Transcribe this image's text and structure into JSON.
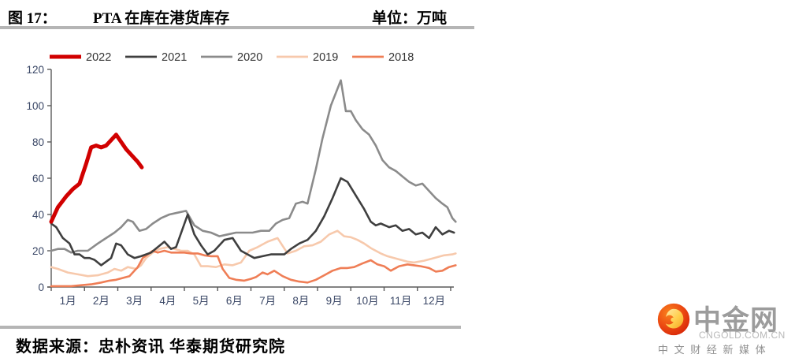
{
  "header": {
    "figure_label": "图 17：",
    "title": "PTA 在库在港货库存",
    "unit_label": "单位：万吨"
  },
  "footer": {
    "source": "数据来源：忠朴资讯 华泰期货研究院"
  },
  "logo": {
    "wordmark": "中金网",
    "domain": "CNGOLD.COM.CN",
    "tagline": "中 文 财 经 新 媒 体"
  },
  "colors": {
    "divider": "#b5b5b5",
    "axis_line": "#5a5a5a",
    "axis_text": "#3a4766",
    "legend_text": "#333333"
  },
  "chart_data": {
    "type": "line",
    "title": "PTA 在库在港货库存",
    "unit": "万吨",
    "x_unit": "month, 1 = start of January, 13 = end of December",
    "x_tick_labels": [
      "1月",
      "2月",
      "3月",
      "4月",
      "5月",
      "6月",
      "7月",
      "8月",
      "9月",
      "10月",
      "11月",
      "12月"
    ],
    "ylim": [
      0,
      120
    ],
    "y_ticks": [
      0,
      20,
      40,
      60,
      80,
      100,
      120
    ],
    "grid": false,
    "legend_position": "top",
    "series": [
      {
        "name": "2022",
        "color": "#d10000",
        "width": 5,
        "points": [
          [
            1.0,
            36
          ],
          [
            1.2,
            44
          ],
          [
            1.45,
            50
          ],
          [
            1.65,
            54
          ],
          [
            1.85,
            57
          ],
          [
            2.05,
            68
          ],
          [
            2.2,
            77
          ],
          [
            2.35,
            78
          ],
          [
            2.5,
            77
          ],
          [
            2.65,
            78
          ],
          [
            2.8,
            81
          ],
          [
            2.95,
            84
          ],
          [
            3.1,
            80
          ],
          [
            3.25,
            76
          ],
          [
            3.45,
            72
          ],
          [
            3.6,
            69
          ],
          [
            3.72,
            66
          ]
        ]
      },
      {
        "name": "2021",
        "color": "#3f3f3f",
        "width": 2.6,
        "points": [
          [
            1.0,
            35
          ],
          [
            1.15,
            33
          ],
          [
            1.35,
            27
          ],
          [
            1.55,
            24
          ],
          [
            1.7,
            18
          ],
          [
            1.85,
            18
          ],
          [
            2.0,
            16
          ],
          [
            2.15,
            16
          ],
          [
            2.3,
            15
          ],
          [
            2.5,
            12
          ],
          [
            2.65,
            14
          ],
          [
            2.8,
            16
          ],
          [
            2.95,
            24
          ],
          [
            3.1,
            23
          ],
          [
            3.3,
            18
          ],
          [
            3.5,
            16
          ],
          [
            3.7,
            17
          ],
          [
            3.85,
            18
          ],
          [
            4.0,
            19
          ],
          [
            4.2,
            22
          ],
          [
            4.4,
            25
          ],
          [
            4.6,
            21
          ],
          [
            4.75,
            22
          ],
          [
            5.1,
            40
          ],
          [
            5.3,
            29
          ],
          [
            5.5,
            23
          ],
          [
            5.7,
            18
          ],
          [
            5.9,
            20
          ],
          [
            6.2,
            26
          ],
          [
            6.45,
            27
          ],
          [
            6.7,
            20
          ],
          [
            6.9,
            18
          ],
          [
            7.1,
            16
          ],
          [
            7.35,
            17
          ],
          [
            7.6,
            18
          ],
          [
            7.8,
            18
          ],
          [
            8.0,
            18
          ],
          [
            8.2,
            21
          ],
          [
            8.45,
            24
          ],
          [
            8.7,
            26
          ],
          [
            8.95,
            31
          ],
          [
            9.2,
            39
          ],
          [
            9.45,
            49
          ],
          [
            9.7,
            60
          ],
          [
            9.9,
            58
          ],
          [
            10.1,
            52
          ],
          [
            10.4,
            43
          ],
          [
            10.6,
            36
          ],
          [
            10.75,
            34
          ],
          [
            10.9,
            35
          ],
          [
            11.15,
            33
          ],
          [
            11.35,
            34
          ],
          [
            11.55,
            31
          ],
          [
            11.75,
            32
          ],
          [
            11.95,
            29
          ],
          [
            12.15,
            30
          ],
          [
            12.35,
            27
          ],
          [
            12.55,
            33
          ],
          [
            12.75,
            29
          ],
          [
            12.95,
            31
          ],
          [
            13.1,
            30
          ]
        ]
      },
      {
        "name": "2020",
        "color": "#8b8b8b",
        "width": 2.6,
        "points": [
          [
            1.0,
            20
          ],
          [
            1.2,
            21
          ],
          [
            1.4,
            21
          ],
          [
            1.6,
            19
          ],
          [
            1.8,
            20
          ],
          [
            2.1,
            20
          ],
          [
            2.4,
            24
          ],
          [
            2.65,
            27
          ],
          [
            2.9,
            30
          ],
          [
            3.1,
            33
          ],
          [
            3.3,
            37
          ],
          [
            3.45,
            36
          ],
          [
            3.65,
            31
          ],
          [
            3.85,
            32
          ],
          [
            4.05,
            35
          ],
          [
            4.3,
            38
          ],
          [
            4.55,
            40
          ],
          [
            4.8,
            41
          ],
          [
            5.05,
            42
          ],
          [
            5.3,
            34
          ],
          [
            5.55,
            31
          ],
          [
            5.8,
            30
          ],
          [
            6.05,
            28
          ],
          [
            6.3,
            29
          ],
          [
            6.55,
            30
          ],
          [
            6.8,
            30
          ],
          [
            7.05,
            30
          ],
          [
            7.3,
            31
          ],
          [
            7.55,
            31
          ],
          [
            7.75,
            35
          ],
          [
            7.95,
            37
          ],
          [
            8.15,
            38
          ],
          [
            8.35,
            46
          ],
          [
            8.55,
            47
          ],
          [
            8.7,
            46
          ],
          [
            8.95,
            65
          ],
          [
            9.15,
            82
          ],
          [
            9.4,
            100
          ],
          [
            9.7,
            114
          ],
          [
            9.85,
            97
          ],
          [
            10.0,
            97
          ],
          [
            10.15,
            92
          ],
          [
            10.35,
            87
          ],
          [
            10.55,
            84
          ],
          [
            10.75,
            78
          ],
          [
            10.95,
            70
          ],
          [
            11.15,
            66
          ],
          [
            11.35,
            64
          ],
          [
            11.55,
            61
          ],
          [
            11.75,
            58
          ],
          [
            11.95,
            56
          ],
          [
            12.15,
            57
          ],
          [
            12.35,
            53
          ],
          [
            12.55,
            49
          ],
          [
            12.75,
            46
          ],
          [
            12.9,
            44
          ],
          [
            13.05,
            38
          ],
          [
            13.15,
            36
          ]
        ]
      },
      {
        "name": "2019",
        "color": "#f7c9ac",
        "width": 2.6,
        "points": [
          [
            1.0,
            11
          ],
          [
            1.2,
            10
          ],
          [
            1.5,
            8
          ],
          [
            1.8,
            7
          ],
          [
            2.1,
            6
          ],
          [
            2.4,
            6.5
          ],
          [
            2.7,
            8
          ],
          [
            2.9,
            10
          ],
          [
            3.1,
            9
          ],
          [
            3.3,
            11
          ],
          [
            3.55,
            10
          ],
          [
            3.7,
            12
          ],
          [
            3.85,
            16
          ],
          [
            4.05,
            19
          ],
          [
            4.25,
            21
          ],
          [
            4.5,
            22
          ],
          [
            4.7,
            21
          ],
          [
            4.9,
            20
          ],
          [
            5.1,
            20
          ],
          [
            5.3,
            18
          ],
          [
            5.5,
            11.5
          ],
          [
            5.7,
            11.5
          ],
          [
            5.95,
            11
          ],
          [
            6.2,
            12.5
          ],
          [
            6.45,
            12
          ],
          [
            6.7,
            13.5
          ],
          [
            6.95,
            20
          ],
          [
            7.2,
            22
          ],
          [
            7.5,
            25
          ],
          [
            7.8,
            27
          ],
          [
            8.1,
            18.5
          ],
          [
            8.35,
            20
          ],
          [
            8.6,
            22.5
          ],
          [
            8.85,
            23
          ],
          [
            9.1,
            25
          ],
          [
            9.35,
            29
          ],
          [
            9.6,
            31
          ],
          [
            9.8,
            28
          ],
          [
            10.0,
            27.5
          ],
          [
            10.2,
            26
          ],
          [
            10.4,
            24
          ],
          [
            10.6,
            21.5
          ],
          [
            10.9,
            18.5
          ],
          [
            11.1,
            17
          ],
          [
            11.4,
            15.5
          ],
          [
            11.7,
            14
          ],
          [
            11.9,
            13.5
          ],
          [
            12.2,
            14.5
          ],
          [
            12.5,
            16
          ],
          [
            12.8,
            17.5
          ],
          [
            13.05,
            18
          ],
          [
            13.15,
            18.5
          ]
        ]
      },
      {
        "name": "2018",
        "color": "#ef7e56",
        "width": 2.6,
        "points": [
          [
            1.0,
            0.5
          ],
          [
            1.3,
            0.5
          ],
          [
            1.6,
            0.5
          ],
          [
            1.9,
            1
          ],
          [
            2.2,
            1.5
          ],
          [
            2.5,
            2.5
          ],
          [
            2.75,
            3.5
          ],
          [
            2.95,
            4
          ],
          [
            3.15,
            5
          ],
          [
            3.35,
            6
          ],
          [
            3.6,
            11
          ],
          [
            3.75,
            16
          ],
          [
            3.9,
            18
          ],
          [
            4.05,
            20
          ],
          [
            4.2,
            19
          ],
          [
            4.4,
            20
          ],
          [
            4.6,
            19
          ],
          [
            4.8,
            19
          ],
          [
            5.0,
            19
          ],
          [
            5.2,
            18.5
          ],
          [
            5.4,
            18.5
          ],
          [
            5.6,
            17.5
          ],
          [
            5.8,
            17
          ],
          [
            6.0,
            17
          ],
          [
            6.15,
            10
          ],
          [
            6.35,
            5
          ],
          [
            6.55,
            4
          ],
          [
            6.8,
            3.5
          ],
          [
            7.0,
            4.5
          ],
          [
            7.15,
            5.5
          ],
          [
            7.35,
            8
          ],
          [
            7.5,
            7
          ],
          [
            7.7,
            9
          ],
          [
            7.95,
            6
          ],
          [
            8.2,
            4
          ],
          [
            8.45,
            3
          ],
          [
            8.7,
            2.5
          ],
          [
            8.95,
            4
          ],
          [
            9.2,
            6.5
          ],
          [
            9.45,
            9
          ],
          [
            9.7,
            10.5
          ],
          [
            9.9,
            10.5
          ],
          [
            10.1,
            11
          ],
          [
            10.35,
            13
          ],
          [
            10.6,
            14.8
          ],
          [
            10.8,
            12.5
          ],
          [
            11.0,
            11.5
          ],
          [
            11.2,
            9
          ],
          [
            11.45,
            11.5
          ],
          [
            11.7,
            12.5
          ],
          [
            11.9,
            12
          ],
          [
            12.1,
            11.5
          ],
          [
            12.35,
            10.5
          ],
          [
            12.55,
            8.5
          ],
          [
            12.75,
            9
          ],
          [
            12.95,
            11
          ],
          [
            13.15,
            12
          ]
        ]
      }
    ]
  }
}
